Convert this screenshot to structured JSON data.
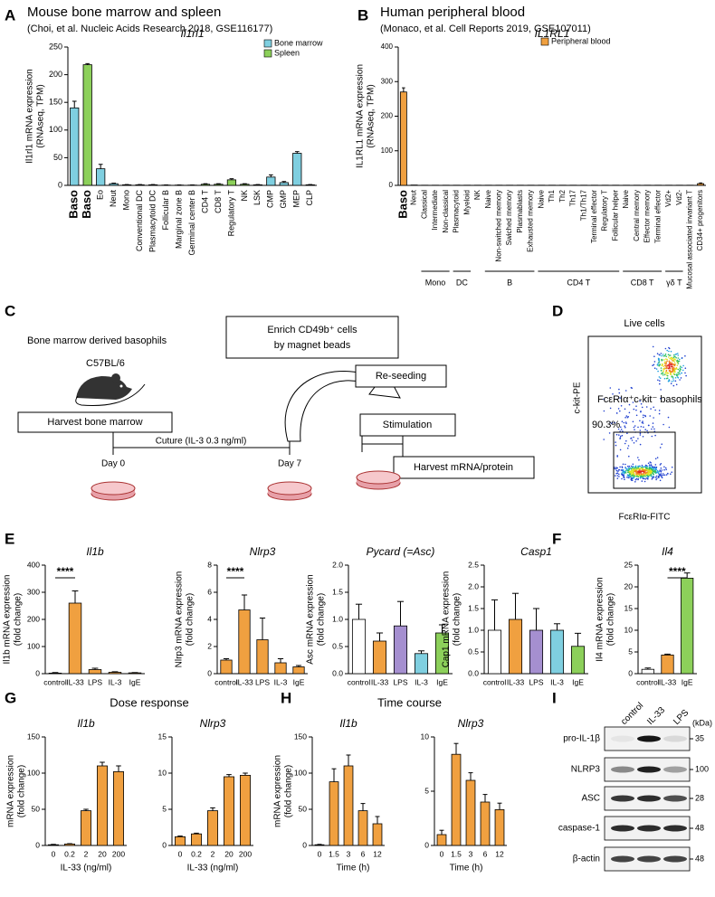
{
  "panel_letters": [
    "A",
    "B",
    "C",
    "D",
    "E",
    "F",
    "G",
    "H",
    "I"
  ],
  "chart_data": [
    {
      "type": "bar",
      "title": "Mouse bone marrow and spleen",
      "subtitle": "(Choi, et al. Nucleic Acids Research 2018, GSE116177)",
      "chart_title": "Il1rl1",
      "y_label": [
        "Il1rl1 mRNA expression",
        "(RNAseq, TPM)"
      ],
      "categories": [
        "Baso",
        "Baso",
        "Eo",
        "Neut",
        "Mono",
        "Conventional DC",
        "Plasmacytoid DC",
        "Follicular B",
        "Marginal zone B",
        "Germinal center B",
        "CD4 T",
        "CD8 T",
        "Regulatory T",
        "NK",
        "LSK",
        "CMP",
        "GMP",
        "MEP",
        "CLP"
      ],
      "series": [
        {
          "name": "Bone marrow",
          "color": "#7fcfe0",
          "values": [
            140,
            null,
            30,
            3,
            1,
            null,
            null,
            null,
            null,
            null,
            null,
            null,
            null,
            null,
            1,
            15,
            5,
            58,
            1
          ],
          "errors": [
            12,
            null,
            8,
            1,
            0.5,
            null,
            null,
            null,
            null,
            null,
            null,
            null,
            null,
            null,
            0.5,
            4,
            2,
            3,
            0.5
          ]
        },
        {
          "name": "Spleen",
          "color": "#8cd05a",
          "values": [
            null,
            218,
            null,
            null,
            null,
            1,
            1,
            0.5,
            0.5,
            0.5,
            2,
            2,
            10,
            2,
            null,
            null,
            null,
            null,
            null
          ],
          "errors": [
            null,
            2,
            null,
            null,
            null,
            0.5,
            0.5,
            0.3,
            0.3,
            0.3,
            1,
            1,
            2,
            1,
            null,
            null,
            null,
            null,
            null
          ]
        }
      ],
      "ylim": [
        0,
        250
      ],
      "yticks": [
        0,
        50,
        100,
        150,
        200,
        250
      ],
      "legend": "upper right"
    },
    {
      "type": "bar",
      "title": "Human peripheral blood",
      "subtitle": "(Monaco, et al. Cell Reports 2019, GSE107011)",
      "chart_title": "IL1RL1",
      "y_label": [
        "IL1RL1 mRNA expression",
        "(RNAseq, TPM)"
      ],
      "categories": [
        "Baso",
        "Neut",
        "Classical",
        "Intermediate",
        "Non-classical",
        "Plasmacytoid",
        "Myeloid",
        "NK",
        "Naive",
        "Non-switched memory",
        "Swiched memory",
        "Plasmablasts",
        "Exhausted memory",
        "Naive",
        "Th1",
        "Th2",
        "Th17",
        "Th1/Th17",
        "Terminal effector",
        "Regulatory T",
        "Follicular helper",
        "Naive",
        "Central memory",
        "Effector memory",
        "Terminal effector",
        "Vd2+",
        "Vd2-",
        "Mucosal associated invariant T",
        "CD34+ progenitors"
      ],
      "series": [
        {
          "name": "Peripheral blood",
          "color": "#f0a040",
          "values": [
            270,
            1,
            0.5,
            0.5,
            0.5,
            0.5,
            0.5,
            0.5,
            0.5,
            0.5,
            0.5,
            0.5,
            0.5,
            0.5,
            0.5,
            0.5,
            0.5,
            0.5,
            0.5,
            0.5,
            0.5,
            0.5,
            0.5,
            0.5,
            0.5,
            0.5,
            0.5,
            0.5,
            5
          ],
          "errors": [
            12,
            null,
            null,
            null,
            null,
            null,
            null,
            null,
            null,
            null,
            null,
            null,
            null,
            null,
            null,
            null,
            null,
            null,
            null,
            null,
            null,
            null,
            null,
            null,
            null,
            null,
            null,
            null,
            2
          ]
        }
      ],
      "groups": [
        "Mono",
        "DC",
        "B",
        "CD4 T",
        "CD8 T",
        "γδ T"
      ],
      "ylim": [
        0,
        400
      ],
      "yticks": [
        0,
        100,
        200,
        300,
        400
      ],
      "legend": "upper right"
    },
    {
      "type": "bar",
      "chart_title": "Il1b",
      "y_label": [
        "Il1b mRNA expression",
        "(fold change)"
      ],
      "categories": [
        "control",
        "IL-33",
        "LPS",
        "IL-3",
        "IgE"
      ],
      "values": [
        2,
        260,
        15,
        5,
        3
      ],
      "errors": [
        2,
        45,
        5,
        2,
        1
      ],
      "color": "#f0a040",
      "ylim": [
        0,
        400
      ],
      "yticks": [
        0,
        100,
        200,
        300,
        400
      ],
      "significance": {
        "label": "****",
        "between": [
          "control",
          "IL-33"
        ]
      }
    },
    {
      "type": "bar",
      "chart_title": "Nlrp3",
      "y_label": [
        "Nlrp3 mRNA expression",
        "(fold change)"
      ],
      "categories": [
        "control",
        "IL-33",
        "LPS",
        "IL-3",
        "IgE"
      ],
      "values": [
        1,
        4.7,
        2.5,
        0.8,
        0.5
      ],
      "errors": [
        0.1,
        1.1,
        1.6,
        0.3,
        0.1
      ],
      "color": "#f0a040",
      "ylim": [
        0,
        8
      ],
      "yticks": [
        0,
        2,
        4,
        6,
        8
      ],
      "significance": {
        "label": "****",
        "between": [
          "control",
          "IL-33"
        ]
      }
    },
    {
      "type": "bar",
      "chart_title": "Pycard (=Asc)",
      "y_label": [
        "Asc mRNA expression",
        "(fold change)"
      ],
      "categories": [
        "control",
        "IL-33",
        "LPS",
        "IL-3",
        "IgE"
      ],
      "values": [
        1.0,
        0.6,
        0.88,
        0.37,
        0.75
      ],
      "errors": [
        0.28,
        0.15,
        0.45,
        0.05,
        0.15
      ],
      "colors": [
        "#ffffff",
        "#f0a040",
        "#a58fd0",
        "#7fcfe0",
        "#8cd05a"
      ],
      "ylim": [
        0,
        2
      ],
      "yticks": [
        {
          "value": 0,
          "label": "0.0"
        },
        {
          "value": 0.5,
          "label": "0.5"
        },
        {
          "value": 1,
          "label": "1.0"
        },
        {
          "value": 1.5,
          "label": "1.5"
        },
        {
          "value": 2,
          "label": "2.0"
        }
      ]
    },
    {
      "type": "bar",
      "chart_title": "Casp1",
      "y_label": [
        "Cap1 mRNA expression",
        "(fold change)"
      ],
      "categories": [
        "control",
        "IL-33",
        "LPS",
        "IL-3",
        "IgE"
      ],
      "values": [
        1.0,
        1.25,
        1.0,
        1.0,
        0.63
      ],
      "errors": [
        0.7,
        0.6,
        0.5,
        0.15,
        0.3
      ],
      "colors": [
        "#ffffff",
        "#f0a040",
        "#a58fd0",
        "#7fcfe0",
        "#8cd05a"
      ],
      "ylim": [
        0,
        2.5
      ],
      "yticks": [
        {
          "value": 0,
          "label": "0.0"
        },
        {
          "value": 0.5,
          "label": "0.5"
        },
        {
          "value": 1,
          "label": "1.0"
        },
        {
          "value": 1.5,
          "label": "1.5"
        },
        {
          "value": 2,
          "label": "2.0"
        },
        {
          "value": 2.5,
          "label": "2.5"
        }
      ]
    },
    {
      "type": "bar",
      "chart_title": "Il4",
      "y_label": [
        "Il4 mRNA expression",
        "(fold change)"
      ],
      "categories": [
        "control",
        "IL-33",
        "IgE"
      ],
      "values": [
        1,
        4.3,
        22
      ],
      "errors": [
        0.3,
        0.2,
        1.2
      ],
      "colors": [
        "#ffffff",
        "#f0a040",
        "#8cd05a"
      ],
      "ylim": [
        0,
        25
      ],
      "yticks": [
        0,
        5,
        10,
        15,
        20,
        25
      ],
      "significance": {
        "label": "****",
        "between": [
          "IL-33",
          "IgE"
        ]
      }
    },
    {
      "type": "bar",
      "chart_title": "Il1b",
      "categories": [
        "0",
        "0.2",
        "2",
        "20",
        "200"
      ],
      "values": [
        1,
        2,
        48,
        110,
        102
      ],
      "errors": [
        0.5,
        0.5,
        2,
        5,
        8
      ],
      "color": "#f0a040",
      "ylim": [
        0,
        150
      ],
      "yticks": [
        0,
        50,
        100,
        150
      ]
    },
    {
      "type": "bar",
      "chart_title": "Nlrp3",
      "categories": [
        "0",
        "0.2",
        "2",
        "20",
        "200"
      ],
      "values": [
        1.2,
        1.6,
        4.8,
        9.5,
        9.7
      ],
      "errors": [
        0.1,
        0.1,
        0.4,
        0.3,
        0.3
      ],
      "color": "#f0a040",
      "ylim": [
        0,
        15
      ],
      "yticks": [
        0,
        5,
        10,
        15
      ]
    },
    {
      "type": "bar",
      "chart_title": "Il1b",
      "categories": [
        "0",
        "1.5",
        "3",
        "6",
        "12"
      ],
      "values": [
        1,
        88,
        110,
        48,
        30
      ],
      "errors": [
        0.5,
        18,
        15,
        10,
        10
      ],
      "color": "#f0a040",
      "ylim": [
        0,
        150
      ],
      "yticks": [
        0,
        50,
        100,
        150
      ]
    },
    {
      "type": "bar",
      "chart_title": "Nlrp3",
      "categories": [
        "0",
        "1.5",
        "3",
        "6",
        "12"
      ],
      "values": [
        1,
        8.4,
        6.0,
        4.0,
        3.3
      ],
      "errors": [
        0.4,
        1,
        0.7,
        0.7,
        0.6
      ],
      "color": "#f0a040",
      "ylim": [
        0,
        10
      ],
      "yticks": [
        0,
        5,
        10
      ]
    }
  ],
  "panel_g": {
    "title": "Dose response",
    "y_label": [
      "mRNA expression",
      "(fold change)"
    ],
    "x_label": "IL-33 (ng/ml)"
  },
  "panel_h": {
    "title": "Time course",
    "y_label": [
      "mRNA expression",
      "(fold change)"
    ],
    "x_label": "Time (h)"
  },
  "panel_c": {
    "title": "Bone marrow derived basophils",
    "strain": "C57BL/6",
    "harvest": "Harvest bone marrow",
    "culture": "Cuture (IL-3 0.3 ng/ml)",
    "day0": "Day 0",
    "day7": "Day 7",
    "enrich": [
      "Enrich CD49b⁺ cells",
      "by magnet beads"
    ],
    "reseed": "Re-seeding",
    "stim": "Stimulation",
    "harvest2": "Harvest mRNA/protein"
  },
  "panel_d": {
    "title": "Live cells",
    "gate": "FcεRIα⁺c-kit⁻ basophils",
    "percent": "90.3%",
    "x_label": "FcεRIα-FITC",
    "y_label": "c-kit-PE"
  },
  "panel_i": {
    "columns": [
      "control",
      "IL-33",
      "LPS"
    ],
    "unit": "(kDa)",
    "rows": [
      {
        "name": "pro-IL-1β",
        "marker": "35"
      },
      {
        "name": "NLRP3",
        "marker": "100"
      },
      {
        "name": "ASC",
        "marker": "28"
      },
      {
        "name": "caspase-1",
        "marker": "48"
      },
      {
        "name": "β-actin",
        "marker": "48"
      }
    ]
  }
}
